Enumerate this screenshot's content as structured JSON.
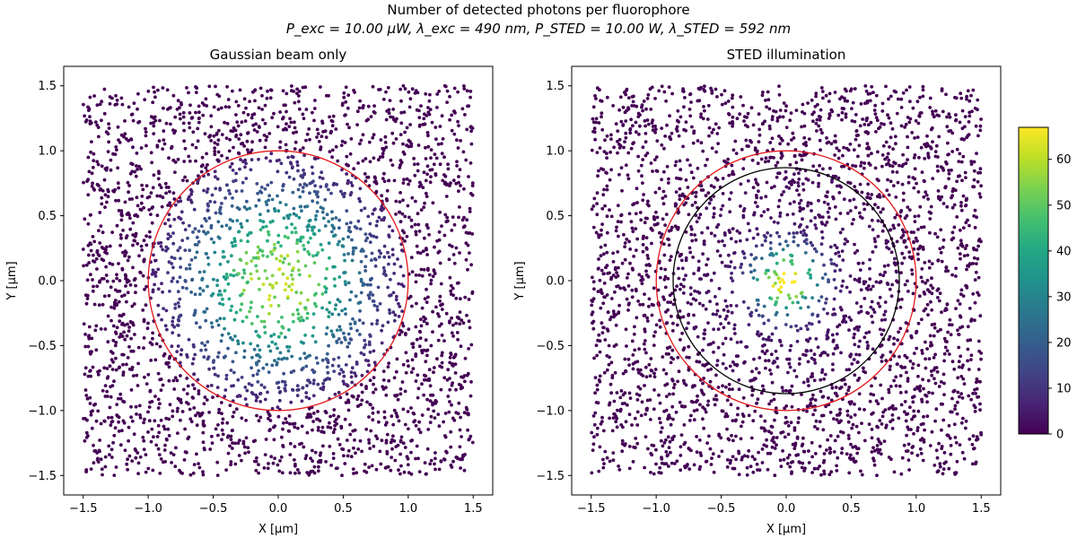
{
  "figure": {
    "suptitle": "Number of detected photons per fluorophore",
    "subtitle": "P_exc = 10.00 μW, λ_exc = 490 nm, P_STED = 10.00 W, λ_STED = 592 nm"
  },
  "chart_data": [
    {
      "type": "scatter",
      "title": "Gaussian beam only",
      "xlabel": "X [μm]",
      "ylabel": "Y [μm]",
      "xlim": [
        -1.65,
        1.65
      ],
      "ylim": [
        -1.65,
        1.65
      ],
      "xticks": [
        "−1.5",
        "−1.0",
        "−0.5",
        "0.0",
        "0.5",
        "1.0",
        "1.5"
      ],
      "yticks": [
        "−1.5",
        "−1.0",
        "−0.5",
        "0.0",
        "0.5",
        "1.0",
        "1.5"
      ],
      "points": {
        "count": 3000,
        "x_range": [
          -1.5,
          1.5
        ],
        "y_range": [
          -1.5,
          1.5
        ],
        "peak_photons": 60,
        "zero_beyond_radius": 1.0
      },
      "circles": [
        {
          "radius": 1.0,
          "color": "#e41a1c"
        }
      ]
    },
    {
      "type": "scatter",
      "title": "STED illumination",
      "xlabel": "X [μm]",
      "ylabel": "Y [μm]",
      "xlim": [
        -1.65,
        1.65
      ],
      "ylim": [
        -1.65,
        1.65
      ],
      "xticks": [
        "−1.5",
        "−1.0",
        "−0.5",
        "0.0",
        "0.5",
        "1.0",
        "1.5"
      ],
      "yticks": [
        "−1.5",
        "−1.0",
        "−0.5",
        "0.0",
        "0.5",
        "1.0",
        "1.5"
      ],
      "points": {
        "count": 3000,
        "x_range": [
          -1.5,
          1.5
        ],
        "y_range": [
          -1.5,
          1.5
        ],
        "peak_photons": 66,
        "zero_beyond_radius": 0.87
      },
      "circles": [
        {
          "radius": 1.0,
          "color": "#e41a1c"
        },
        {
          "radius": 0.87,
          "color": "#000000"
        }
      ]
    }
  ],
  "colorbar": {
    "colormap": "viridis",
    "min": 0,
    "max": 67,
    "ticks": [
      "0",
      "10",
      "20",
      "30",
      "40",
      "50",
      "60"
    ]
  }
}
